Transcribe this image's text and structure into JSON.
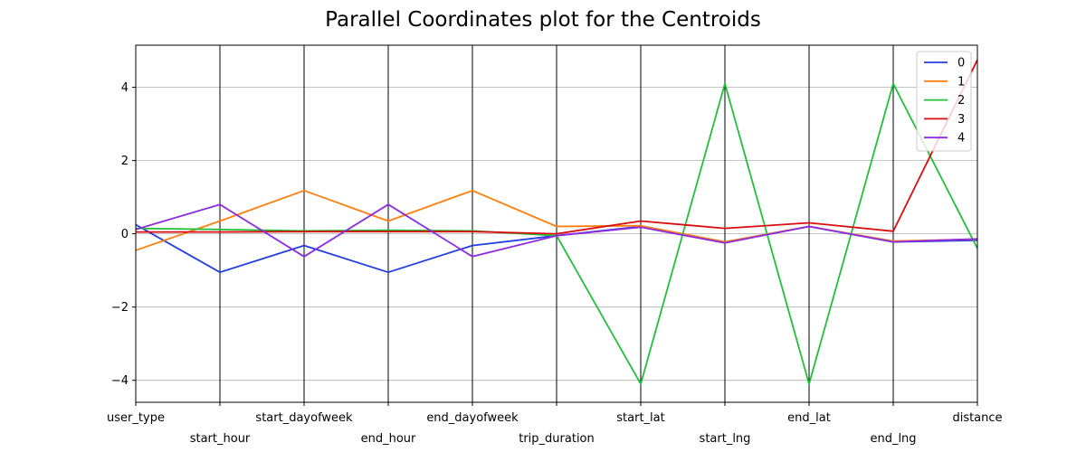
{
  "chart_data": {
    "type": "line",
    "title": "Parallel Coordinates plot for the Centroids",
    "categories": [
      "user_type",
      "start_hour",
      "start_dayofweek",
      "end_hour",
      "end_dayofweek",
      "trip_duration",
      "start_lat",
      "start_lng",
      "end_lat",
      "end_lng",
      "distance"
    ],
    "series": [
      {
        "name": "0",
        "color": "#1f3fe0",
        "values": [
          0.25,
          -1.05,
          -0.32,
          -1.05,
          -0.32,
          -0.05,
          0.2,
          -0.22,
          0.2,
          -0.22,
          -0.18
        ]
      },
      {
        "name": "1",
        "color": "#ff7f0e",
        "values": [
          -0.45,
          0.35,
          1.18,
          0.35,
          1.18,
          0.2,
          0.22,
          -0.22,
          0.2,
          -0.2,
          -0.15
        ]
      },
      {
        "name": "2",
        "color": "#22c03a",
        "values": [
          0.15,
          0.12,
          0.08,
          0.1,
          0.08,
          -0.05,
          -4.1,
          4.1,
          -4.1,
          4.1,
          -0.4
        ]
      },
      {
        "name": "3",
        "color": "#d90d0d",
        "values": [
          0.05,
          0.05,
          0.06,
          0.06,
          0.06,
          0.0,
          0.35,
          0.15,
          0.3,
          0.07,
          4.75
        ]
      },
      {
        "name": "4",
        "color": "#8b2be2",
        "values": [
          0.12,
          0.8,
          -0.62,
          0.8,
          -0.62,
          -0.05,
          0.18,
          -0.25,
          0.2,
          -0.22,
          -0.14
        ]
      }
    ],
    "yticks": [
      -4,
      -2,
      0,
      2,
      4
    ],
    "ylim": [
      -4.6,
      5.15
    ],
    "grid": true,
    "legend": "top-right"
  }
}
